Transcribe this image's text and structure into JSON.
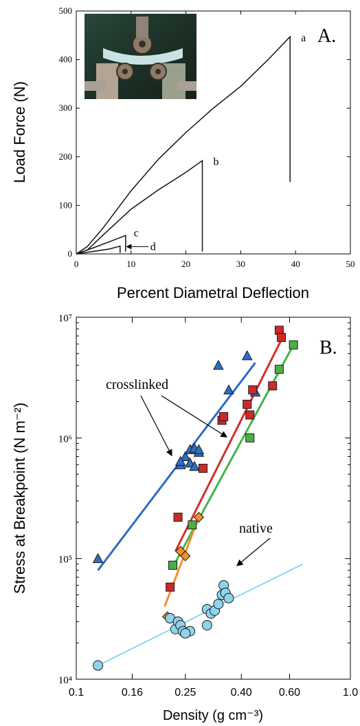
{
  "chart_data": [
    {
      "type": "line",
      "panel_label": "A.",
      "xlabel": "Percent Diametral Deflection",
      "ylabel": "Load Force (N)",
      "xlim": [
        0,
        50
      ],
      "ylim": [
        0,
        500
      ],
      "x_ticks": [
        "0",
        "10",
        "20",
        "30",
        "40",
        "50"
      ],
      "y_ticks": [
        "0",
        "100",
        "200",
        "300",
        "400",
        "500"
      ],
      "grid": false,
      "inset_photo": "three-point bend test fixture",
      "series": [
        {
          "name": "a",
          "x": [
            0,
            2,
            5,
            10,
            15,
            20,
            25,
            30,
            35,
            39,
            39,
            39
          ],
          "y": [
            0,
            15,
            55,
            130,
            195,
            250,
            300,
            345,
            400,
            447,
            447,
            148
          ]
        },
        {
          "name": "b",
          "x": [
            0,
            2,
            5,
            10,
            15,
            20,
            23,
            23,
            23
          ],
          "y": [
            0,
            8,
            40,
            92,
            132,
            168,
            192,
            192,
            5
          ]
        },
        {
          "name": "c",
          "x": [
            0,
            3,
            6,
            9,
            9,
            9
          ],
          "y": [
            0,
            12,
            25,
            38,
            38,
            5
          ]
        },
        {
          "name": "d",
          "x": [
            0,
            3,
            6,
            8,
            8
          ],
          "y": [
            0,
            5,
            10,
            16,
            2
          ]
        }
      ],
      "annotations": [
        {
          "text": "a",
          "x": 41,
          "y": 445
        },
        {
          "text": "b",
          "x": 25,
          "y": 190
        },
        {
          "text": "c",
          "x": 10.5,
          "y": 43
        },
        {
          "text": "d",
          "x": 13.5,
          "y": 15
        }
      ]
    },
    {
      "type": "scatter",
      "panel_label": "B.",
      "xlabel": "Density (g cm⁻³)",
      "ylabel": "Stress at Breakpoint (N m⁻²)",
      "xscale": "log",
      "yscale": "log",
      "xlim": [
        0.1,
        1.0
      ],
      "ylim": [
        10000,
        10000000
      ],
      "x_ticks": [
        "0.1",
        "0.16",
        "0.25",
        "0.40",
        "0.60",
        "1.0"
      ],
      "y_ticks": [
        "10⁴",
        "10⁵",
        "10⁶",
        "10⁷"
      ],
      "grid": false,
      "series": [
        {
          "marker": "triangle",
          "color": "#2e6fc2",
          "line_color": "#2d6bc4",
          "x": [
            0.12,
            0.24,
            0.25,
            0.26,
            0.27,
            0.28,
            0.24,
            0.26,
            0.27,
            0.28,
            0.33,
            0.36,
            0.42,
            0.45
          ],
          "y": [
            100000,
            600000,
            700000,
            800000,
            820000,
            760000,
            640000,
            620000,
            580000,
            800000,
            4000000,
            2500000,
            4800000,
            2400000
          ],
          "fit": {
            "x": [
              0.12,
              0.45
            ],
            "y": [
              80000,
              4200000
            ]
          }
        },
        {
          "marker": "square",
          "color": "#cc2a2a",
          "line_color": "#d0302e",
          "x": [
            0.22,
            0.235,
            0.29,
            0.34,
            0.345,
            0.42,
            0.43,
            0.44,
            0.52,
            0.55,
            0.56
          ],
          "y": [
            58000,
            220000,
            560000,
            1400000,
            1500000,
            1900000,
            1550000,
            2500000,
            2700000,
            7800000,
            6800000
          ],
          "fit": {
            "x": [
              0.23,
              0.56
            ],
            "y": [
              115000,
              6500000
            ]
          }
        },
        {
          "marker": "square",
          "color": "#4caf45",
          "line_color": "#3fb54a",
          "x": [
            0.225,
            0.265,
            0.43,
            0.55,
            0.62
          ],
          "y": [
            88000,
            190000,
            1000000,
            3700000,
            5900000
          ],
          "fit": {
            "x": [
              0.225,
              0.62
            ],
            "y": [
              85000,
              5900000
            ]
          }
        },
        {
          "marker": "diamond",
          "color": "#f0902b",
          "line_color": "#f0902b",
          "x": [
            0.215,
            0.24,
            0.25,
            0.28
          ],
          "y": [
            33000,
            115000,
            105000,
            220000
          ],
          "fit": {
            "x": [
              0.21,
              0.28
            ],
            "y": [
              40000,
              220000
            ]
          }
        },
        {
          "marker": "circle",
          "color": "#8fd3ee",
          "line_color": "#6fc8ea",
          "x": [
            0.12,
            0.22,
            0.23,
            0.235,
            0.24,
            0.245,
            0.26,
            0.25,
            0.3,
            0.31,
            0.32,
            0.33,
            0.34,
            0.345,
            0.35,
            0.36,
            0.3
          ],
          "y": [
            13000,
            32000,
            26000,
            30000,
            28000,
            25000,
            25000,
            24000,
            38000,
            35000,
            37000,
            42000,
            50000,
            60000,
            52000,
            47000,
            28000
          ],
          "fit": {
            "x": [
              0.12,
              0.67
            ],
            "y": [
              13000,
              90000
            ]
          }
        }
      ],
      "annotations": [
        {
          "text": "crosslinked",
          "x": 0.215,
          "y": 2700000
        },
        {
          "text": "native",
          "x": 0.36,
          "y": 150000
        }
      ]
    }
  ]
}
